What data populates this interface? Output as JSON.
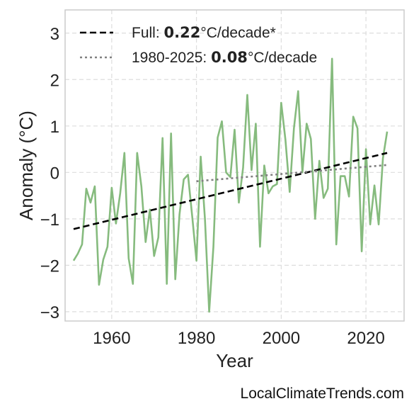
{
  "chart_data": {
    "type": "line",
    "xlabel": "Year",
    "ylabel": "Anomaly (°C)",
    "xlim": [
      1949,
      2029
    ],
    "ylim": [
      -3.2,
      3.5
    ],
    "x_ticks": [
      1960,
      1980,
      2000,
      2020
    ],
    "y_ticks": [
      -3,
      -2,
      -1,
      0,
      1,
      2,
      3
    ],
    "x_tick_labels": [
      "1960",
      "1980",
      "2000",
      "2020"
    ],
    "y_tick_labels": [
      "−3",
      "−2",
      "−1",
      "0",
      "1",
      "2",
      "3"
    ],
    "grid": true,
    "legend_position": "top-left",
    "series": [
      {
        "color": "#86bb7e",
        "style": "solid",
        "x": [
          1951,
          1952,
          1953,
          1954,
          1955,
          1956,
          1957,
          1958,
          1959,
          1960,
          1961,
          1962,
          1963,
          1964,
          1965,
          1966,
          1967,
          1968,
          1969,
          1970,
          1971,
          1972,
          1973,
          1974,
          1975,
          1976,
          1977,
          1978,
          1979,
          1980,
          1981,
          1982,
          1983,
          1984,
          1985,
          1986,
          1987,
          1988,
          1989,
          1990,
          1991,
          1992,
          1993,
          1994,
          1995,
          1996,
          1997,
          1998,
          1999,
          2000,
          2001,
          2002,
          2003,
          2004,
          2005,
          2006,
          2007,
          2008,
          2009,
          2010,
          2011,
          2012,
          2013,
          2014,
          2015,
          2016,
          2017,
          2018,
          2019,
          2020,
          2021,
          2022,
          2023,
          2024,
          2025
        ],
        "y": [
          -1.9,
          -1.75,
          -1.55,
          -0.35,
          -0.65,
          -0.3,
          -2.42,
          -1.88,
          -1.6,
          -0.33,
          -1.1,
          -0.45,
          0.42,
          -1.85,
          -2.4,
          0.42,
          -0.3,
          -1.5,
          -0.8,
          -1.8,
          -1.4,
          0.74,
          -2.4,
          0.84,
          -2.3,
          -0.9,
          -0.15,
          -0.05,
          -0.95,
          -1.9,
          0.34,
          -1.0,
          -3.0,
          -1.6,
          0.75,
          1.1,
          0.0,
          -0.1,
          0.92,
          -0.65,
          0.1,
          1.67,
          0.05,
          1.05,
          -1.6,
          0.15,
          -0.45,
          -0.3,
          -0.25,
          1.5,
          0.7,
          -0.42,
          0.95,
          1.75,
          0.0,
          1.05,
          0.72,
          -1.0,
          0.25,
          -0.55,
          -0.35,
          2.45,
          -1.55,
          -0.08,
          -0.08,
          -0.52,
          1.2,
          0.95,
          -1.7,
          0.5,
          -1.12,
          -0.28,
          -1.12,
          0.3,
          0.88
        ]
      },
      {
        "name": "Full",
        "color": "#000000",
        "style": "dashed",
        "x": [
          1951,
          2025
        ],
        "y": [
          -1.22,
          0.42
        ]
      },
      {
        "name": "1980-2025",
        "color": "#808080",
        "style": "dotted",
        "x": [
          1980,
          2025
        ],
        "y": [
          -0.19,
          0.16
        ]
      }
    ]
  },
  "legend": [
    {
      "prefix": "Full: ",
      "value": "0.22",
      "suffix": "°C/decade*"
    },
    {
      "prefix": "1980-2025: ",
      "value": "0.08",
      "suffix": "°C/decade"
    }
  ],
  "watermark": "LocalClimateTrends.com"
}
